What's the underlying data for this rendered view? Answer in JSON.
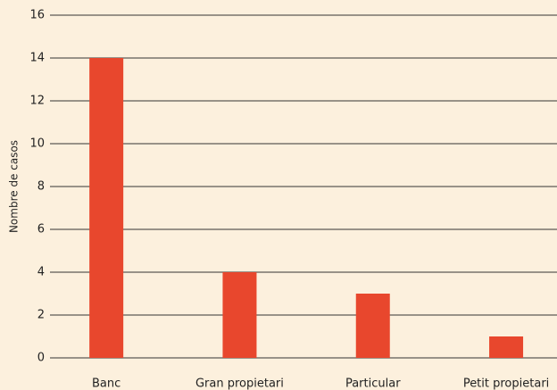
{
  "chart_data": {
    "type": "bar",
    "y_label": "Nombre de casos",
    "categories": [
      "Banc",
      "Gran propietari",
      "Particular",
      "Petit propietari"
    ],
    "values": [
      14,
      4,
      3,
      1
    ],
    "color": "#e8472d",
    "ylim": [
      0,
      16
    ],
    "yticks": [
      0,
      2,
      4,
      6,
      8,
      10,
      12,
      14,
      16
    ],
    "grid": true
  }
}
